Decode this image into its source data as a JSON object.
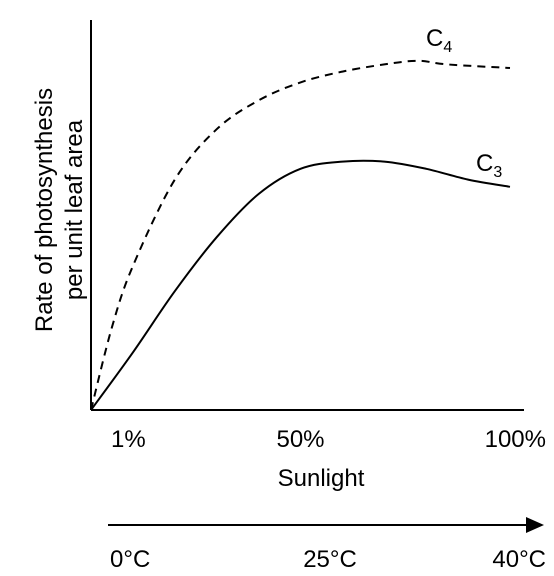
{
  "chart_data": {
    "type": "line",
    "ylabel_line1": "Rate of photosynthesis",
    "ylabel_line2": "per unit leaf area",
    "xlabel": "Sunlight",
    "x_ticks": [
      {
        "value": 1,
        "label": "1%"
      },
      {
        "value": 50,
        "label": "50%"
      },
      {
        "value": 100,
        "label": "100%"
      }
    ],
    "temperature_ticks": [
      {
        "value": 0,
        "label": "0°C"
      },
      {
        "value": 25,
        "label": "25°C"
      },
      {
        "value": 40,
        "label": "40°C"
      }
    ],
    "x_range": [
      0,
      100
    ],
    "y_range": [
      0,
      100
    ],
    "series": [
      {
        "name": "C",
        "subscript": "4",
        "style": "dashed",
        "color": "#000000",
        "points": [
          [
            0,
            0
          ],
          [
            5,
            23
          ],
          [
            10,
            40
          ],
          [
            20,
            64
          ],
          [
            30,
            78
          ],
          [
            40,
            86
          ],
          [
            50,
            91
          ],
          [
            60,
            94
          ],
          [
            70,
            96
          ],
          [
            78,
            97
          ],
          [
            85,
            96
          ],
          [
            100,
            95
          ]
        ]
      },
      {
        "name": "C",
        "subscript": "3",
        "style": "solid",
        "color": "#000000",
        "points": [
          [
            0,
            0
          ],
          [
            10,
            16
          ],
          [
            20,
            33
          ],
          [
            30,
            48
          ],
          [
            40,
            60
          ],
          [
            50,
            67
          ],
          [
            60,
            69
          ],
          [
            70,
            69
          ],
          [
            80,
            67
          ],
          [
            90,
            64
          ],
          [
            100,
            62
          ]
        ]
      }
    ]
  }
}
